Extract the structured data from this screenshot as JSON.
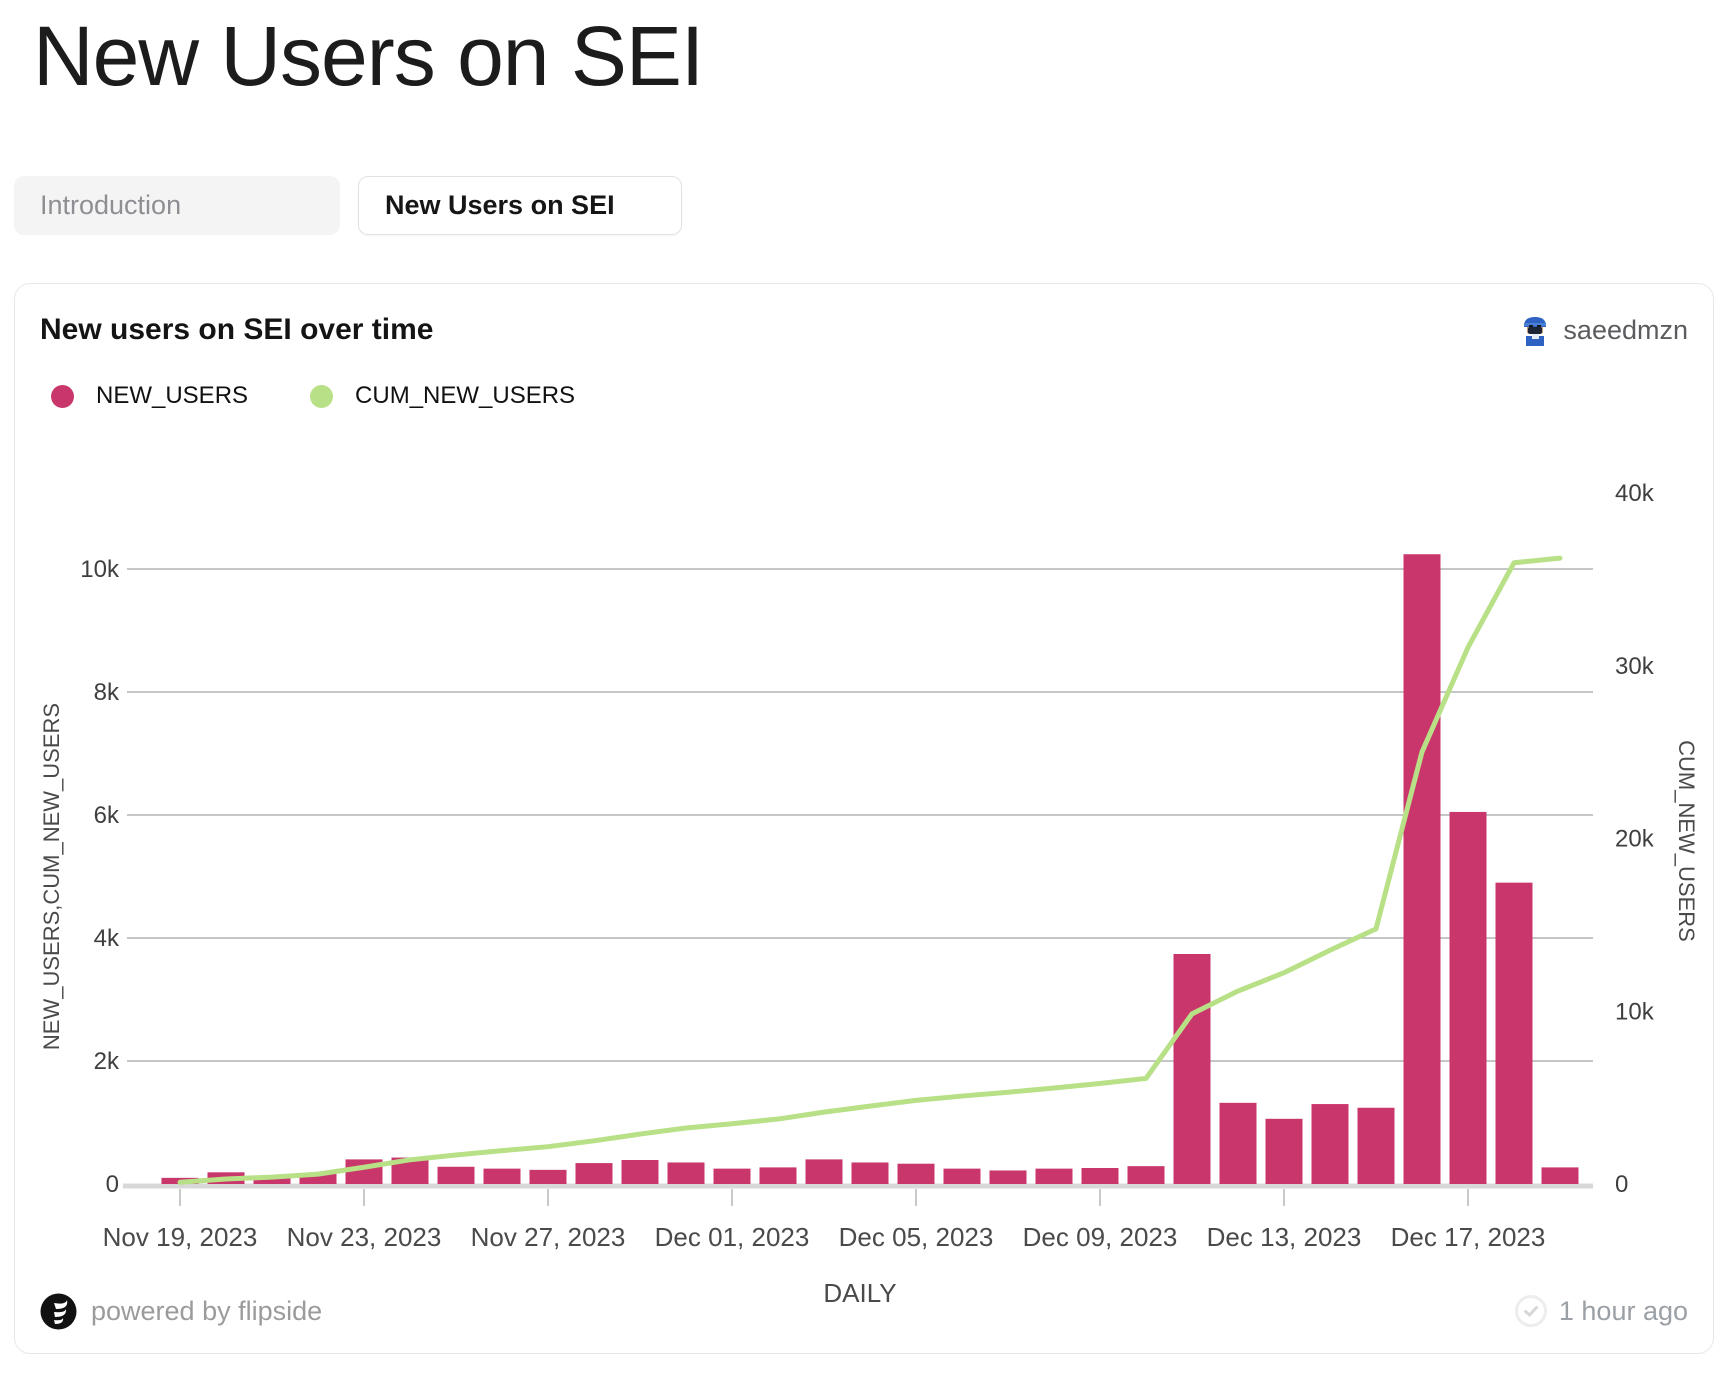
{
  "page": {
    "title": "New Users on SEI"
  },
  "tabs": [
    {
      "label": "Introduction",
      "active": false
    },
    {
      "label": "New Users on SEI",
      "active": true
    }
  ],
  "card": {
    "title": "New users on SEI over time",
    "author": "saeedmzn",
    "footer_left": "powered by flipside",
    "footer_right": "1 hour ago"
  },
  "colors": {
    "bar": "#c9366b",
    "line": "#b8e086",
    "grid": "#b3b3b3",
    "baseline": "#d8d8d8",
    "axis_text": "#3f3f3f",
    "axis_title": "#4a4a4a"
  },
  "chart_data": {
    "type": "bar+line dual-axis combo",
    "title": "New users on SEI over time",
    "xlabel": "DAILY",
    "grid": true,
    "legend_position": "top-left",
    "categories": [
      "Nov 19, 2023",
      "Nov 20, 2023",
      "Nov 21, 2023",
      "Nov 22, 2023",
      "Nov 23, 2023",
      "Nov 24, 2023",
      "Nov 25, 2023",
      "Nov 26, 2023",
      "Nov 27, 2023",
      "Nov 28, 2023",
      "Nov 29, 2023",
      "Nov 30, 2023",
      "Dec 01, 2023",
      "Dec 02, 2023",
      "Dec 03, 2023",
      "Dec 04, 2023",
      "Dec 05, 2023",
      "Dec 06, 2023",
      "Dec 07, 2023",
      "Dec 08, 2023",
      "Dec 09, 2023",
      "Dec 10, 2023",
      "Dec 11, 2023",
      "Dec 12, 2023",
      "Dec 13, 2023",
      "Dec 14, 2023",
      "Dec 15, 2023",
      "Dec 16, 2023",
      "Dec 17, 2023",
      "Dec 18, 2023",
      "Dec 19, 2023"
    ],
    "series": [
      {
        "name": "NEW_USERS",
        "type": "bar",
        "axis": "left",
        "values": [
          100,
          190,
          110,
          170,
          400,
          430,
          280,
          250,
          230,
          340,
          390,
          350,
          250,
          270,
          400,
          350,
          330,
          250,
          220,
          250,
          260,
          290,
          3740,
          1320,
          1060,
          1300,
          1240,
          10240,
          6050,
          4900,
          270
        ]
      },
      {
        "name": "CUM_NEW_USERS",
        "type": "line",
        "axis": "right",
        "values": [
          100,
          290,
          400,
          570,
          970,
          1400,
          1680,
          1930,
          2160,
          2500,
          2890,
          3240,
          3490,
          3760,
          4160,
          4510,
          4840,
          5090,
          5310,
          5560,
          5820,
          6110,
          9850,
          11170,
          12230,
          13530,
          14770,
          25010,
          31060,
          35960,
          36230
        ]
      }
    ],
    "left_axis": {
      "title": "NEW_USERS,CUM_NEW_USERS",
      "tick_values": [
        0,
        2000,
        4000,
        6000,
        8000,
        10000
      ],
      "ticks": [
        "0",
        "2k",
        "4k",
        "6k",
        "8k",
        "10k"
      ],
      "range": [
        0,
        11240
      ]
    },
    "right_axis": {
      "title": "CUM_NEW_USERS",
      "tick_values": [
        0,
        10000,
        20000,
        30000,
        40000
      ],
      "ticks": [
        "0",
        "10k",
        "20k",
        "30k",
        "40k"
      ],
      "range": [
        0,
        40000
      ]
    },
    "x_tick_day_indices": [
      0,
      4,
      8,
      12,
      16,
      20,
      24,
      28
    ],
    "x_tick_labels": [
      "Nov 19, 2023",
      "Nov 23, 2023",
      "Nov 27, 2023",
      "Dec 01, 2023",
      "Dec 05, 2023",
      "Dec 09, 2023",
      "Dec 13, 2023",
      "Dec 17, 2023"
    ]
  }
}
